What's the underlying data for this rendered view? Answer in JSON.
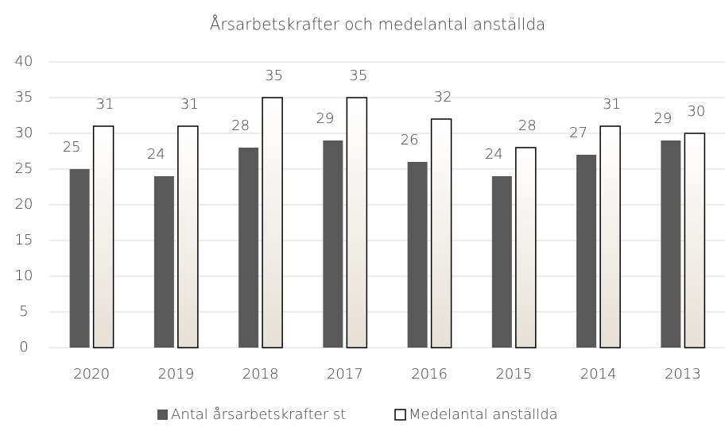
{
  "chart_data": {
    "type": "bar",
    "title": "Årsarbetskrafter och medelantal anställda",
    "categories": [
      "2020",
      "2019",
      "2018",
      "2017",
      "2016",
      "2015",
      "2014",
      "2013"
    ],
    "series": [
      {
        "name": "Antal årsarbetskrafter st",
        "color": "#595959",
        "values": [
          25,
          24,
          28,
          29,
          26,
          24,
          27,
          29
        ]
      },
      {
        "name": "Medelantal anställda",
        "color": "#e6e0d6",
        "values": [
          31,
          31,
          35,
          35,
          32,
          28,
          31,
          30
        ]
      }
    ],
    "ylim": [
      0,
      40
    ],
    "yticks": [
      0,
      5,
      10,
      15,
      20,
      25,
      30,
      35,
      40
    ],
    "grid": true,
    "legend": "bottom"
  }
}
